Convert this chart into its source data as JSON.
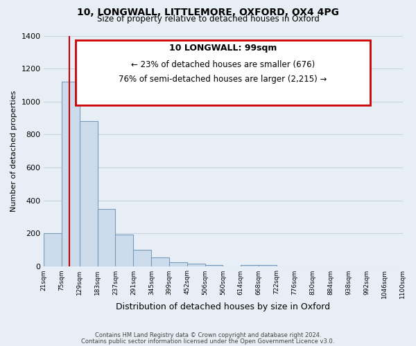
{
  "title": "10, LONGWALL, LITTLEMORE, OXFORD, OX4 4PG",
  "subtitle": "Size of property relative to detached houses in Oxford",
  "xlabel": "Distribution of detached houses by size in Oxford",
  "ylabel": "Number of detached properties",
  "bar_left_edges": [
    21,
    75,
    129,
    183,
    237,
    291,
    345,
    399,
    452,
    506,
    560,
    614,
    668,
    722,
    776,
    830,
    884,
    938,
    992,
    1046
  ],
  "bar_heights": [
    200,
    1120,
    880,
    350,
    195,
    100,
    55,
    25,
    18,
    10,
    0,
    10,
    10,
    0,
    0,
    0,
    0,
    0,
    0,
    0
  ],
  "bin_width": 54,
  "tick_labels": [
    "21sqm",
    "75sqm",
    "129sqm",
    "183sqm",
    "237sqm",
    "291sqm",
    "345sqm",
    "399sqm",
    "452sqm",
    "506sqm",
    "560sqm",
    "614sqm",
    "668sqm",
    "722sqm",
    "776sqm",
    "830sqm",
    "884sqm",
    "938sqm",
    "992sqm",
    "1046sqm",
    "1100sqm"
  ],
  "bar_color": "#ccdcec",
  "bar_edge_color": "#7799bb",
  "grid_color": "#c8d4e0",
  "bg_color": "#e8eef5",
  "vline_x": 99,
  "vline_color": "#cc0000",
  "annotation_title": "10 LONGWALL: 99sqm",
  "annotation_line1": "← 23% of detached houses are smaller (676)",
  "annotation_line2": "76% of semi-detached houses are larger (2,215) →",
  "annotation_box_color": "#ffffff",
  "annotation_border_color": "#cc0000",
  "ylim": [
    0,
    1400
  ],
  "yticks": [
    0,
    200,
    400,
    600,
    800,
    1000,
    1200,
    1400
  ],
  "footer1": "Contains HM Land Registry data © Crown copyright and database right 2024.",
  "footer2": "Contains public sector information licensed under the Open Government Licence v3.0."
}
